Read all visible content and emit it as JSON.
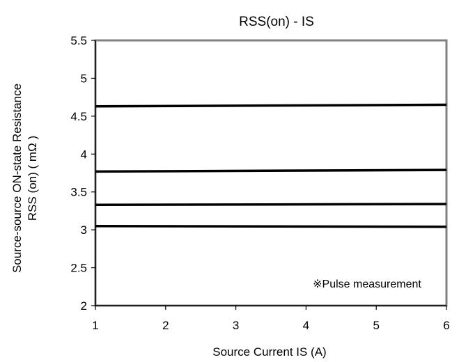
{
  "chart_data": {
    "type": "line",
    "title": "RSS(on) - IS",
    "xlabel": "Source Current IS (A)",
    "ylabel_line1": "Source-source ON-state Resistance",
    "ylabel_line2": "RSS (on)  ( mΩ )",
    "xlim": [
      1,
      6
    ],
    "ylim": [
      2,
      5.5
    ],
    "xticks": [
      "1",
      "2",
      "3",
      "4",
      "5",
      "6"
    ],
    "yticks": [
      "2",
      "2.5",
      "3",
      "3.5",
      "4",
      "4.5",
      "5",
      "5.5"
    ],
    "grid": false,
    "annotation": "※Pulse measurement",
    "series": [
      {
        "x": [
          1,
          6
        ],
        "y": [
          4.63,
          4.65
        ]
      },
      {
        "x": [
          1,
          6
        ],
        "y": [
          3.77,
          3.79
        ]
      },
      {
        "x": [
          1,
          6
        ],
        "y": [
          3.33,
          3.34
        ]
      },
      {
        "x": [
          1,
          6
        ],
        "y": [
          3.05,
          3.04
        ]
      }
    ],
    "line_color": "#000000",
    "frame_color": "#808080"
  }
}
